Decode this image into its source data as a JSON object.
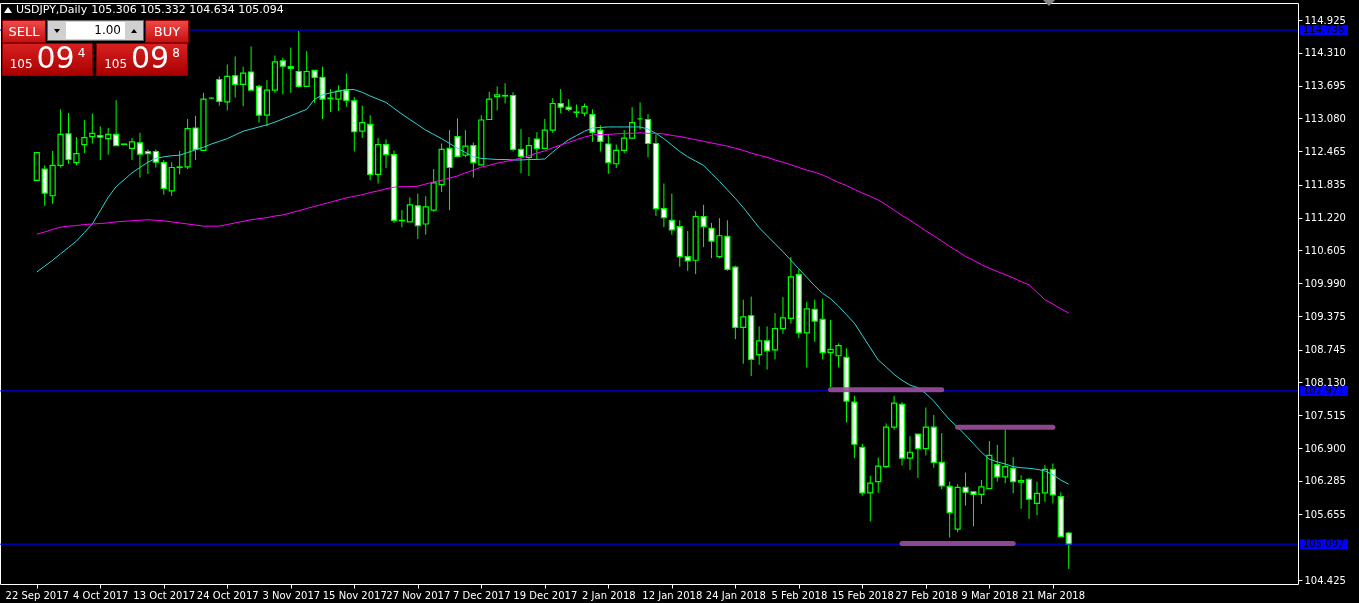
{
  "chart_data": {
    "type": "candlestick",
    "title": "USDJPY,Daily",
    "subtitle": "105.306 105.332 104.634 105.094",
    "annotations": [
      "SELL",
      "1.00",
      "BUY",
      "105",
      "09",
      "4",
      "105",
      "09",
      "8"
    ],
    "categories": [
      "22 Sep 2017",
      null,
      null,
      null,
      null,
      null,
      null,
      null,
      "4 Oct 2017",
      null,
      null,
      null,
      null,
      null,
      null,
      null,
      "13 Oct 2017",
      null,
      null,
      null,
      null,
      null,
      null,
      null,
      "24 Oct 2017",
      null,
      null,
      null,
      null,
      null,
      null,
      null,
      "3 Nov 2017",
      null,
      null,
      null,
      null,
      null,
      null,
      null,
      "15 Nov 2017",
      null,
      null,
      null,
      null,
      null,
      null,
      null,
      "27 Nov 2017",
      null,
      null,
      null,
      null,
      null,
      null,
      null,
      "7 Dec 2017",
      null,
      null,
      null,
      null,
      null,
      null,
      null,
      "19 Dec 2017",
      null,
      null,
      null,
      null,
      null,
      null,
      null,
      "2 Jan 2018",
      null,
      null,
      null,
      null,
      null,
      null,
      null,
      "12 Jan 2018",
      null,
      null,
      null,
      null,
      null,
      null,
      null,
      "24 Jan 2018",
      null,
      null,
      null,
      null,
      null,
      null,
      null,
      "5 Feb 2018",
      null,
      null,
      null,
      null,
      null,
      null,
      null,
      "15 Feb 2018",
      null,
      null,
      null,
      null,
      null,
      null,
      null,
      "27 Feb 2018",
      null,
      null,
      null,
      null,
      null,
      null,
      null,
      "9 Mar 2018",
      null,
      null,
      null,
      null,
      null,
      null,
      null,
      "21 Mar 2018",
      null,
      null
    ],
    "ohlc": [
      [
        111.92,
        112.44,
        111.92,
        112.44
      ],
      [
        112.13,
        112.2,
        111.44,
        111.68
      ],
      [
        111.63,
        112.47,
        111.48,
        112.2
      ],
      [
        112.2,
        113.25,
        112.16,
        112.78
      ],
      [
        112.79,
        113.18,
        112.23,
        112.31
      ],
      [
        112.25,
        112.73,
        112.2,
        112.42
      ],
      [
        112.59,
        113.05,
        112.43,
        112.72
      ],
      [
        112.74,
        113.17,
        112.61,
        112.8
      ],
      [
        112.76,
        112.93,
        112.3,
        112.73
      ],
      [
        112.7,
        112.9,
        112.4,
        112.78
      ],
      [
        112.78,
        113.42,
        112.57,
        112.57
      ],
      [
        112.6,
        112.6,
        112.59,
        112.59
      ],
      [
        112.52,
        112.71,
        112.3,
        112.64
      ],
      [
        112.62,
        112.81,
        111.97,
        112.41
      ],
      [
        112.46,
        112.5,
        112.04,
        112.42
      ],
      [
        112.46,
        112.5,
        112.16,
        112.26
      ],
      [
        112.25,
        112.3,
        111.65,
        111.77
      ],
      [
        111.72,
        112.26,
        111.63,
        112.16
      ],
      [
        112.16,
        112.47,
        112.03,
        112.17
      ],
      [
        112.17,
        113.07,
        112.13,
        112.89
      ],
      [
        112.9,
        113.13,
        112.3,
        112.5
      ],
      [
        112.48,
        113.56,
        112.47,
        113.44
      ],
      [
        113.46,
        113.47,
        113.45,
        113.46
      ],
      [
        113.81,
        113.87,
        113.32,
        113.4
      ],
      [
        113.39,
        114.09,
        113.23,
        113.87
      ],
      [
        113.88,
        114.24,
        113.47,
        113.72
      ],
      [
        113.72,
        114.05,
        113.31,
        113.93
      ],
      [
        113.95,
        114.43,
        113.61,
        113.61
      ],
      [
        113.68,
        113.71,
        113.0,
        113.14
      ],
      [
        113.14,
        113.8,
        112.93,
        113.61
      ],
      [
        113.61,
        114.26,
        113.56,
        114.14
      ],
      [
        114.16,
        114.22,
        113.53,
        114.06
      ],
      [
        114.05,
        114.41,
        113.56,
        114.02
      ],
      [
        113.96,
        114.72,
        113.66,
        113.68
      ],
      [
        113.68,
        114.34,
        113.68,
        113.96
      ],
      [
        113.98,
        113.98,
        113.37,
        113.85
      ],
      [
        113.85,
        114.05,
        113.07,
        113.44
      ],
      [
        113.46,
        113.63,
        113.2,
        113.45
      ],
      [
        113.44,
        113.7,
        113.22,
        113.59
      ],
      [
        113.61,
        113.92,
        113.3,
        113.42
      ],
      [
        113.41,
        113.48,
        112.46,
        112.83
      ],
      [
        112.84,
        113.32,
        112.71,
        113.0
      ],
      [
        112.97,
        113.14,
        111.92,
        112.03
      ],
      [
        112.03,
        112.71,
        111.86,
        112.59
      ],
      [
        112.59,
        112.69,
        112.15,
        112.4
      ],
      [
        112.4,
        112.48,
        111.12,
        111.17
      ],
      [
        111.17,
        111.36,
        111.04,
        111.16
      ],
      [
        111.14,
        111.6,
        111.14,
        111.46
      ],
      [
        111.44,
        111.67,
        110.82,
        111.07
      ],
      [
        111.1,
        111.62,
        110.9,
        111.42
      ],
      [
        111.36,
        112.13,
        111.33,
        111.87
      ],
      [
        111.84,
        112.61,
        111.7,
        112.5
      ],
      [
        112.52,
        112.86,
        111.36,
        112.16
      ],
      [
        112.74,
        113.08,
        112.35,
        112.37
      ],
      [
        112.39,
        112.86,
        112.35,
        112.56
      ],
      [
        112.57,
        112.63,
        111.97,
        112.25
      ],
      [
        112.21,
        113.14,
        112.2,
        113.05
      ],
      [
        113.06,
        113.58,
        113.06,
        113.44
      ],
      [
        113.49,
        113.68,
        113.23,
        113.52
      ],
      [
        113.5,
        113.74,
        113.36,
        113.51
      ],
      [
        113.51,
        113.57,
        112.46,
        112.5
      ],
      [
        112.5,
        112.88,
        112.05,
        112.37
      ],
      [
        112.35,
        112.73,
        112.0,
        112.57
      ],
      [
        112.69,
        112.82,
        112.3,
        112.52
      ],
      [
        112.52,
        113.07,
        112.5,
        112.86
      ],
      [
        112.86,
        113.46,
        112.81,
        113.36
      ],
      [
        113.36,
        113.63,
        113.18,
        113.29
      ],
      [
        113.29,
        113.44,
        113.22,
        113.25
      ],
      [
        113.2,
        113.34,
        113.1,
        113.19
      ],
      [
        113.18,
        113.36,
        113.12,
        113.3
      ],
      [
        113.15,
        113.25,
        112.64,
        112.82
      ],
      [
        112.86,
        112.95,
        112.46,
        112.65
      ],
      [
        112.6,
        112.78,
        112.04,
        112.25
      ],
      [
        112.23,
        112.59,
        112.15,
        112.48
      ],
      [
        112.48,
        112.86,
        112.43,
        112.71
      ],
      [
        112.71,
        113.29,
        112.7,
        113.0
      ],
      [
        113.07,
        113.38,
        112.87,
        113.07
      ],
      [
        113.06,
        113.16,
        112.35,
        112.61
      ],
      [
        112.61,
        112.78,
        111.25,
        111.39
      ],
      [
        111.39,
        111.86,
        111.04,
        111.22
      ],
      [
        111.17,
        111.67,
        110.9,
        110.99
      ],
      [
        111.05,
        111.17,
        110.3,
        110.49
      ],
      [
        110.49,
        110.97,
        110.22,
        110.41
      ],
      [
        110.42,
        111.34,
        110.16,
        111.24
      ],
      [
        111.24,
        111.46,
        110.67,
        111.05
      ],
      [
        111.02,
        111.12,
        110.46,
        110.78
      ],
      [
        110.49,
        111.21,
        110.46,
        110.88
      ],
      [
        110.87,
        111.17,
        110.22,
        110.25
      ],
      [
        110.29,
        110.32,
        108.94,
        109.16
      ],
      [
        109.16,
        109.68,
        108.48,
        109.36
      ],
      [
        109.38,
        109.74,
        108.25,
        108.56
      ],
      [
        108.65,
        109.18,
        108.46,
        108.91
      ],
      [
        108.91,
        109.18,
        108.37,
        108.72
      ],
      [
        108.74,
        109.43,
        108.56,
        109.14
      ],
      [
        109.14,
        109.73,
        109.04,
        109.34
      ],
      [
        109.33,
        110.48,
        109.23,
        110.11
      ],
      [
        110.15,
        110.25,
        108.96,
        109.06
      ],
      [
        109.06,
        109.64,
        108.41,
        109.51
      ],
      [
        109.5,
        109.68,
        108.89,
        109.28
      ],
      [
        109.31,
        109.7,
        108.56,
        108.69
      ],
      [
        108.69,
        109.3,
        108.04,
        108.75
      ],
      [
        108.63,
        108.86,
        108.41,
        108.82
      ],
      [
        108.6,
        108.77,
        107.38,
        107.78
      ],
      [
        107.76,
        107.88,
        106.71,
        106.97
      ],
      [
        106.91,
        106.98,
        106.01,
        106.06
      ],
      [
        106.06,
        106.38,
        105.52,
        106.24
      ],
      [
        106.27,
        106.72,
        106.06,
        106.56
      ],
      [
        106.55,
        107.36,
        106.53,
        107.29
      ],
      [
        107.29,
        107.88,
        107.24,
        107.74
      ],
      [
        107.72,
        107.76,
        106.57,
        106.71
      ],
      [
        106.71,
        107.12,
        106.49,
        106.82
      ],
      [
        107.16,
        107.16,
        106.34,
        106.89
      ],
      [
        106.89,
        107.66,
        106.76,
        107.29
      ],
      [
        107.29,
        107.52,
        106.53,
        106.63
      ],
      [
        106.63,
        107.18,
        106.13,
        106.19
      ],
      [
        106.18,
        106.27,
        105.22,
        105.69
      ],
      [
        105.38,
        106.22,
        105.32,
        106.16
      ],
      [
        106.16,
        106.44,
        105.82,
        106.07
      ],
      [
        106.08,
        106.08,
        105.43,
        106.03
      ],
      [
        106.03,
        106.3,
        105.85,
        106.17
      ],
      [
        106.14,
        107.03,
        106.14,
        106.76
      ],
      [
        106.59,
        106.96,
        106.27,
        106.36
      ],
      [
        106.36,
        107.24,
        106.24,
        106.55
      ],
      [
        106.52,
        106.73,
        106.05,
        106.27
      ],
      [
        106.26,
        106.39,
        105.76,
        106.29
      ],
      [
        106.31,
        106.34,
        105.57,
        105.94
      ],
      [
        105.86,
        106.27,
        105.64,
        106.05
      ],
      [
        106.06,
        106.58,
        105.89,
        106.5
      ],
      [
        106.5,
        106.61,
        105.86,
        106.02
      ],
      [
        105.99,
        106.07,
        105.23,
        105.24
      ],
      [
        105.306,
        105.332,
        104.634,
        105.094
      ]
    ],
    "series": [
      {
        "type": "line",
        "color": "#30d5d5",
        "values": [
          110.2,
          110.31,
          110.42,
          110.54,
          110.66,
          110.78,
          110.94,
          111.1,
          111.35,
          111.6,
          111.8,
          111.93,
          112.06,
          112.16,
          112.26,
          112.33,
          112.36,
          112.38,
          112.39,
          112.44,
          112.49,
          112.54,
          112.6,
          112.65,
          112.7,
          112.77,
          112.84,
          112.88,
          112.92,
          112.96,
          113.01,
          113.07,
          113.13,
          113.19,
          113.25,
          113.44,
          113.52,
          113.56,
          113.59,
          113.62,
          113.62,
          113.57,
          113.5,
          113.44,
          113.38,
          113.27,
          113.16,
          113.06,
          112.96,
          112.86,
          112.78,
          112.7,
          112.61,
          112.52,
          112.44,
          112.36,
          112.33,
          112.32,
          112.31,
          112.31,
          112.3,
          112.3,
          112.31,
          112.31,
          112.32,
          112.45,
          112.57,
          112.68,
          112.76,
          112.84,
          112.9,
          112.91,
          112.92,
          112.92,
          112.92,
          112.92,
          112.92,
          112.88,
          112.8,
          112.7,
          112.58,
          112.46,
          112.36,
          112.28,
          112.2,
          112.05,
          111.9,
          111.74,
          111.58,
          111.41,
          111.22,
          111.03,
          110.88,
          110.73,
          110.58,
          110.42,
          110.26,
          110.1,
          109.94,
          109.8,
          109.7,
          109.56,
          109.4,
          109.24,
          109.01,
          108.78,
          108.55,
          108.42,
          108.28,
          108.17,
          108.08,
          108.03,
          107.92,
          107.78,
          107.6,
          107.43,
          107.29,
          107.14,
          106.98,
          106.82,
          106.69,
          106.64,
          106.6,
          106.55,
          106.53,
          106.52,
          106.5,
          106.47,
          106.4,
          106.3,
          106.22
        ]
      },
      {
        "type": "line",
        "color": "#ff00ff",
        "values": [
          110.91,
          110.95,
          111.0,
          111.04,
          111.06,
          111.07,
          111.09,
          111.1,
          111.11,
          111.12,
          111.14,
          111.15,
          111.16,
          111.17,
          111.18,
          111.17,
          111.16,
          111.14,
          111.12,
          111.1,
          111.08,
          111.06,
          111.06,
          111.06,
          111.09,
          111.12,
          111.15,
          111.18,
          111.2,
          111.22,
          111.25,
          111.27,
          111.31,
          111.35,
          111.39,
          111.43,
          111.47,
          111.51,
          111.55,
          111.59,
          111.62,
          111.65,
          111.69,
          111.72,
          111.76,
          111.79,
          111.8,
          111.8,
          111.81,
          111.85,
          111.89,
          111.92,
          111.96,
          112.0,
          112.06,
          112.11,
          112.17,
          112.2,
          112.24,
          112.27,
          112.3,
          112.34,
          112.38,
          112.43,
          112.47,
          112.53,
          112.58,
          112.63,
          112.68,
          112.73,
          112.77,
          112.78,
          112.78,
          112.79,
          112.8,
          112.8,
          112.81,
          112.8,
          112.8,
          112.79,
          112.76,
          112.74,
          112.71,
          112.68,
          112.65,
          112.62,
          112.59,
          112.56,
          112.52,
          112.48,
          112.43,
          112.39,
          112.35,
          112.3,
          112.26,
          112.21,
          112.16,
          112.11,
          112.07,
          112.02,
          111.95,
          111.88,
          111.82,
          111.75,
          111.68,
          111.62,
          111.55,
          111.46,
          111.36,
          111.26,
          111.17,
          111.07,
          110.97,
          110.88,
          110.78,
          110.68,
          110.59,
          110.49,
          110.42,
          110.34,
          110.27,
          110.21,
          110.15,
          110.09,
          110.02,
          109.96,
          109.82,
          109.68,
          109.6,
          109.51,
          109.43
        ]
      },
      {
        "type": "line",
        "color": "#9c4f9c",
        "values": [
          null,
          null,
          null,
          null,
          null,
          null,
          null,
          null,
          null,
          null,
          null,
          null,
          null,
          null,
          null,
          null,
          null,
          null,
          null,
          null,
          null,
          null,
          null,
          null,
          null,
          null,
          null,
          null,
          null,
          null,
          null,
          null,
          null,
          null,
          null,
          null,
          null,
          null,
          null,
          null,
          null,
          null,
          null,
          null,
          null,
          null,
          null,
          null,
          null,
          null,
          null,
          null,
          null,
          null,
          null,
          null,
          null,
          null,
          null,
          null,
          null,
          null,
          null,
          null,
          null,
          null,
          null,
          null,
          null,
          null,
          null,
          null,
          null,
          null,
          null,
          null,
          null,
          null,
          null,
          null,
          null,
          null,
          null,
          null,
          null,
          null,
          null,
          null,
          null,
          null,
          null,
          null,
          null,
          null,
          null,
          null,
          null,
          null,
          null,
          null,
          107.99,
          107.99,
          107.99,
          107.99,
          107.99,
          107.99,
          107.99,
          107.99,
          107.99,
          107.99,
          107.99,
          107.99,
          107.99,
          107.99,
          107.99,
          null,
          null,
          null,
          null,
          null,
          null,
          null,
          null,
          null,
          null,
          null,
          null,
          null,
          null,
          null,
          null
        ]
      },
      {
        "type": "line",
        "color": "#9c4f9c",
        "values": [
          null,
          null,
          null,
          null,
          null,
          null,
          null,
          null,
          null,
          null,
          null,
          null,
          null,
          null,
          null,
          null,
          null,
          null,
          null,
          null,
          null,
          null,
          null,
          null,
          null,
          null,
          null,
          null,
          null,
          null,
          null,
          null,
          null,
          null,
          null,
          null,
          null,
          null,
          null,
          null,
          null,
          null,
          null,
          null,
          null,
          null,
          null,
          null,
          null,
          null,
          null,
          null,
          null,
          null,
          null,
          null,
          null,
          null,
          null,
          null,
          null,
          null,
          null,
          null,
          null,
          null,
          null,
          null,
          null,
          null,
          null,
          null,
          null,
          null,
          null,
          null,
          null,
          null,
          null,
          null,
          null,
          null,
          null,
          null,
          null,
          null,
          null,
          null,
          null,
          null,
          null,
          null,
          null,
          null,
          null,
          null,
          null,
          null,
          null,
          null,
          null,
          null,
          null,
          null,
          null,
          null,
          null,
          null,
          null,
          null,
          null,
          null,
          null,
          null,
          null,
          null,
          107.29,
          107.29,
          107.29,
          107.29,
          107.29,
          107.29,
          107.29,
          107.29,
          107.29,
          107.29,
          107.29,
          107.29,
          107.29,
          null,
          null
        ]
      },
      {
        "type": "line",
        "color": "#9c4f9c",
        "values": [
          null,
          null,
          null,
          null,
          null,
          null,
          null,
          null,
          null,
          null,
          null,
          null,
          null,
          null,
          null,
          null,
          null,
          null,
          null,
          null,
          null,
          null,
          null,
          null,
          null,
          null,
          null,
          null,
          null,
          null,
          null,
          null,
          null,
          null,
          null,
          null,
          null,
          null,
          null,
          null,
          null,
          null,
          null,
          null,
          null,
          null,
          null,
          null,
          null,
          null,
          null,
          null,
          null,
          null,
          null,
          null,
          null,
          null,
          null,
          null,
          null,
          null,
          null,
          null,
          null,
          null,
          null,
          null,
          null,
          null,
          null,
          null,
          null,
          null,
          null,
          null,
          null,
          null,
          null,
          null,
          null,
          null,
          null,
          null,
          null,
          null,
          null,
          null,
          null,
          null,
          null,
          null,
          null,
          null,
          null,
          null,
          null,
          null,
          null,
          null,
          null,
          null,
          null,
          null,
          null,
          null,
          null,
          null,
          null,
          105.11,
          105.11,
          105.11,
          105.11,
          105.11,
          105.11,
          105.11,
          105.11,
          105.11,
          105.11,
          105.11,
          105.11,
          105.11,
          105.11,
          105.11,
          null,
          null,
          null,
          null,
          null,
          null,
          null
        ]
      }
    ],
    "ylim": [
      104.35,
      115.244
    ],
    "yticks": [
      104.425,
      105.655,
      106.285,
      {
        "value": 106.9,
        "label": "106.900"
      },
      107.515,
      {
        "value": 108.13,
        "label": "108.130"
      },
      108.745,
      109.375,
      {
        "value": 109.99,
        "label": "109.990"
      },
      110.605,
      {
        "value": 111.22,
        "label": "111.220"
      },
      111.835,
      112.465,
      {
        "value": 113.08,
        "label": "113.080"
      },
      113.695,
      {
        "value": 114.31,
        "label": "114.310"
      },
      114.925
    ],
    "ref_lines": [
      {
        "axis": "y",
        "value": 114.736,
        "label": "114.736",
        "color": "#0000ff"
      },
      {
        "axis": "y",
        "value": 107.971,
        "label": "107.971",
        "color": "#0000ff"
      },
      {
        "axis": "y",
        "value": 105.097,
        "label": "105.097",
        "color": "#0000ff"
      }
    ]
  }
}
